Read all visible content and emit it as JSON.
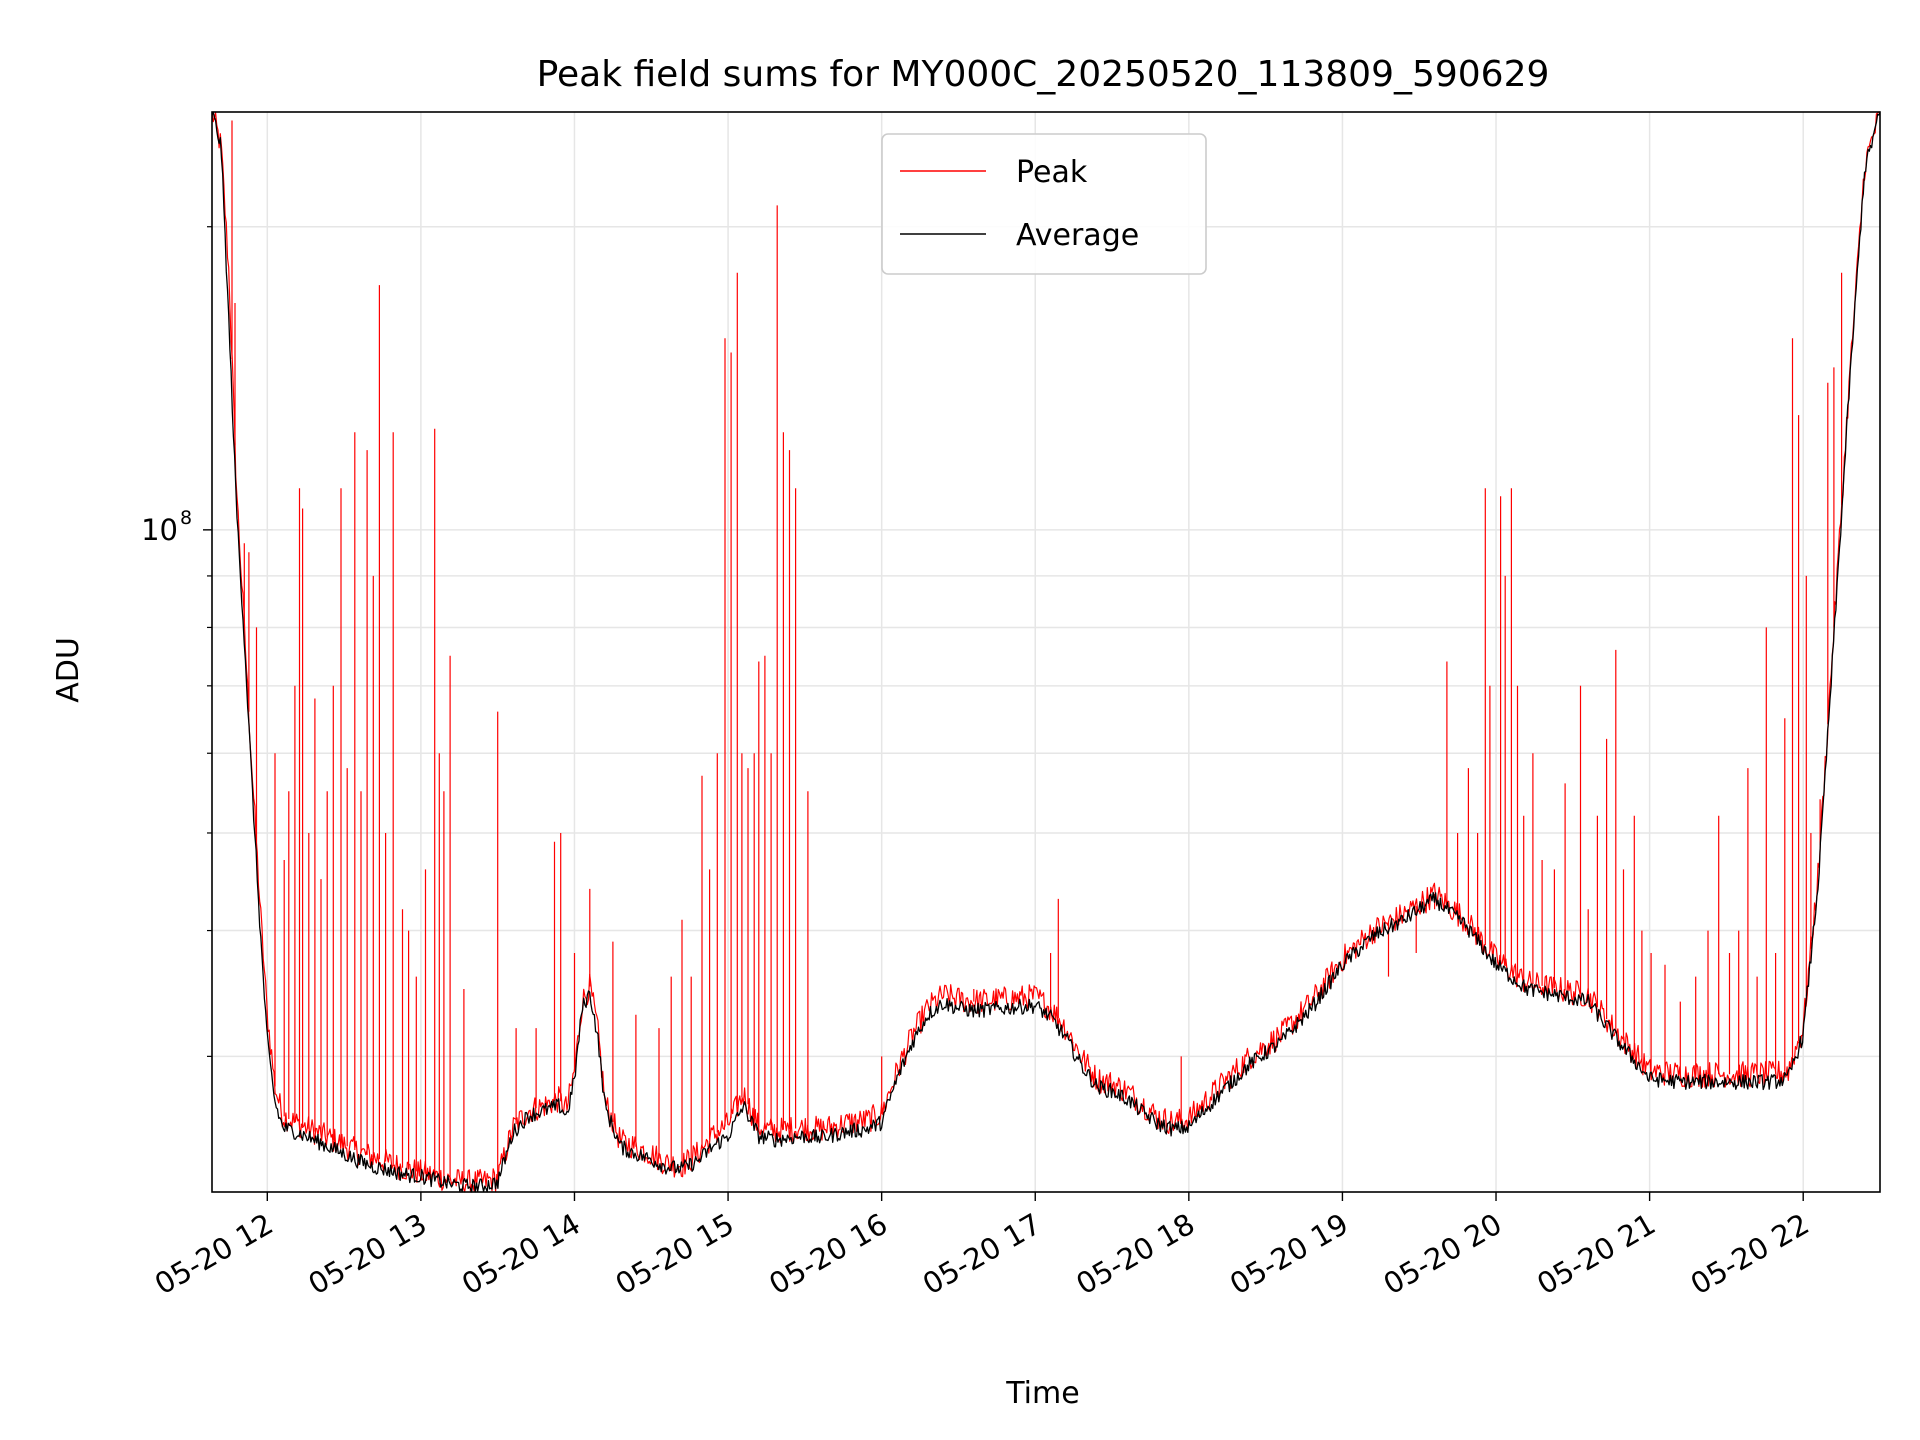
{
  "chart_data": {
    "type": "line",
    "title": "Peak field sums for MY000C_20250520_113809_590629",
    "xlabel": "Time",
    "ylabel": "ADU",
    "yscale": "log",
    "x_unit": "hours on 2025-05-20",
    "xlim": [
      11.64,
      22.5
    ],
    "ylim": [
      22000000,
      260000000
    ],
    "grid": true,
    "legend_position": "top-center",
    "x_ticks": [
      {
        "value": 12,
        "label": "05-20 12"
      },
      {
        "value": 13,
        "label": "05-20 13"
      },
      {
        "value": 14,
        "label": "05-20 14"
      },
      {
        "value": 15,
        "label": "05-20 15"
      },
      {
        "value": 16,
        "label": "05-20 16"
      },
      {
        "value": 17,
        "label": "05-20 17"
      },
      {
        "value": 18,
        "label": "05-20 18"
      },
      {
        "value": 19,
        "label": "05-20 19"
      },
      {
        "value": 20,
        "label": "05-20 20"
      },
      {
        "value": 21,
        "label": "05-20 21"
      },
      {
        "value": 22,
        "label": "05-20 22"
      }
    ],
    "y_major_ticks": [
      {
        "value": 100000000,
        "base": "10",
        "exp": "8"
      }
    ],
    "y_minor_ticks": [
      30000000,
      40000000,
      50000000,
      60000000,
      70000000,
      80000000,
      90000000,
      200000000
    ],
    "series": [
      {
        "name": "Peak",
        "color": "#ff0000",
        "x": [
          11.64,
          11.7,
          11.75,
          11.8,
          11.85,
          11.9,
          11.95,
          12.0,
          12.05,
          12.1,
          12.2,
          12.3,
          12.4,
          12.5,
          12.6,
          12.7,
          12.8,
          12.9,
          13.0,
          13.1,
          13.2,
          13.3,
          13.4,
          13.5,
          13.6,
          13.7,
          13.8,
          13.9,
          13.95,
          14.0,
          14.05,
          14.1,
          14.15,
          14.2,
          14.3,
          14.4,
          14.5,
          14.6,
          14.7,
          14.8,
          14.9,
          15.0,
          15.1,
          15.2,
          15.3,
          15.4,
          15.5,
          15.6,
          15.7,
          15.8,
          15.9,
          16.0,
          16.1,
          16.2,
          16.3,
          16.4,
          16.5,
          16.6,
          16.8,
          17.0,
          17.1,
          17.2,
          17.3,
          17.4,
          17.5,
          17.6,
          17.7,
          17.8,
          17.9,
          18.0,
          18.1,
          18.2,
          18.4,
          18.6,
          18.8,
          19.0,
          19.2,
          19.4,
          19.6,
          19.8,
          20.0,
          20.2,
          20.4,
          20.6,
          20.8,
          21.0,
          21.2,
          21.4,
          21.6,
          21.8,
          21.9,
          22.0,
          22.1,
          22.2,
          22.3,
          22.4,
          22.5
        ],
        "y": [
          260000000,
          240000000,
          180000000,
          110000000,
          80000000,
          58000000,
          43000000,
          33000000,
          28000000,
          26200000,
          25700000,
          25300000,
          24900000,
          24500000,
          24100000,
          23800000,
          23500000,
          23200000,
          23000000,
          22800000,
          22600000,
          22500000,
          22500000,
          22700000,
          25500000,
          26500000,
          26800000,
          27200000,
          26600000,
          29000000,
          34000000,
          35200000,
          32000000,
          27000000,
          24700000,
          24400000,
          24000000,
          23500000,
          23400000,
          24000000,
          25000000,
          25700000,
          27500000,
          25500000,
          25300000,
          25400000,
          25500000,
          25400000,
          25600000,
          25800000,
          25900000,
          26300000,
          29000000,
          31500000,
          33500000,
          34500000,
          34200000,
          34000000,
          34200000,
          34400000,
          33500000,
          32000000,
          30000000,
          28500000,
          28200000,
          27700000,
          26900000,
          26100000,
          25800000,
          26000000,
          27000000,
          28000000,
          30000000,
          31500000,
          34000000,
          37500000,
          40000000,
          41500000,
          43500000,
          41000000,
          37500000,
          35500000,
          35000000,
          34500000,
          31500000,
          29000000,
          28800000,
          28800000,
          28800000,
          28800000,
          29000000,
          32000000,
          46000000,
          80000000,
          140000000,
          230000000,
          260000000
        ],
        "spikes": [
          [
            11.77,
            255000000
          ],
          [
            11.79,
            168000000
          ],
          [
            11.85,
            97000000
          ],
          [
            11.88,
            95000000
          ],
          [
            11.93,
            80000000
          ],
          [
            12.05,
            60000000
          ],
          [
            12.11,
            47000000
          ],
          [
            12.14,
            55000000
          ],
          [
            12.18,
            70000000
          ],
          [
            12.21,
            110000000
          ],
          [
            12.23,
            105000000
          ],
          [
            12.27,
            50000000
          ],
          [
            12.31,
            68000000
          ],
          [
            12.35,
            45000000
          ],
          [
            12.39,
            55000000
          ],
          [
            12.43,
            70000000
          ],
          [
            12.48,
            110000000
          ],
          [
            12.52,
            58000000
          ],
          [
            12.57,
            125000000
          ],
          [
            12.61,
            55000000
          ],
          [
            12.65,
            120000000
          ],
          [
            12.69,
            90000000
          ],
          [
            12.73,
            175000000
          ],
          [
            12.77,
            50000000
          ],
          [
            12.82,
            125000000
          ],
          [
            12.88,
            42000000
          ],
          [
            12.92,
            40000000
          ],
          [
            12.97,
            36000000
          ],
          [
            13.03,
            46000000
          ],
          [
            13.09,
            126000000
          ],
          [
            13.12,
            60000000
          ],
          [
            13.15,
            55000000
          ],
          [
            13.19,
            75000000
          ],
          [
            13.28,
            35000000
          ],
          [
            13.5,
            66000000
          ],
          [
            13.62,
            32000000
          ],
          [
            13.75,
            32000000
          ],
          [
            13.87,
            49000000
          ],
          [
            13.91,
            50000000
          ],
          [
            14.0,
            38000000
          ],
          [
            14.1,
            44000000
          ],
          [
            14.25,
            39000000
          ],
          [
            14.4,
            33000000
          ],
          [
            14.55,
            32000000
          ],
          [
            14.63,
            36000000
          ],
          [
            14.7,
            41000000
          ],
          [
            14.76,
            36000000
          ],
          [
            14.83,
            57000000
          ],
          [
            14.88,
            46000000
          ],
          [
            14.93,
            60000000
          ],
          [
            14.98,
            155000000
          ],
          [
            15.02,
            150000000
          ],
          [
            15.06,
            180000000
          ],
          [
            15.09,
            60000000
          ],
          [
            15.13,
            58000000
          ],
          [
            15.17,
            60000000
          ],
          [
            15.2,
            74000000
          ],
          [
            15.24,
            75000000
          ],
          [
            15.28,
            60000000
          ],
          [
            15.32,
            210000000
          ],
          [
            15.36,
            125000000
          ],
          [
            15.4,
            120000000
          ],
          [
            15.44,
            110000000
          ],
          [
            15.52,
            55000000
          ],
          [
            16.0,
            30000000
          ],
          [
            16.6,
            35000000
          ],
          [
            17.1,
            38000000
          ],
          [
            17.15,
            43000000
          ],
          [
            17.25,
            31000000
          ],
          [
            17.95,
            30000000
          ],
          [
            19.3,
            36000000
          ],
          [
            19.48,
            38000000
          ],
          [
            19.6,
            42000000
          ],
          [
            19.68,
            74000000
          ],
          [
            19.75,
            50000000
          ],
          [
            19.82,
            58000000
          ],
          [
            19.88,
            50000000
          ],
          [
            19.93,
            110000000
          ],
          [
            19.96,
            70000000
          ],
          [
            20.03,
            108000000
          ],
          [
            20.06,
            90000000
          ],
          [
            20.1,
            110000000
          ],
          [
            20.14,
            70000000
          ],
          [
            20.18,
            52000000
          ],
          [
            20.24,
            60000000
          ],
          [
            20.3,
            47000000
          ],
          [
            20.38,
            46000000
          ],
          [
            20.45,
            56000000
          ],
          [
            20.55,
            70000000
          ],
          [
            20.6,
            42000000
          ],
          [
            20.66,
            52000000
          ],
          [
            20.72,
            62000000
          ],
          [
            20.78,
            76000000
          ],
          [
            20.83,
            46000000
          ],
          [
            20.9,
            52000000
          ],
          [
            20.95,
            40000000
          ],
          [
            21.01,
            38000000
          ],
          [
            21.1,
            37000000
          ],
          [
            21.2,
            34000000
          ],
          [
            21.3,
            36000000
          ],
          [
            21.38,
            40000000
          ],
          [
            21.45,
            52000000
          ],
          [
            21.52,
            38000000
          ],
          [
            21.58,
            40000000
          ],
          [
            21.64,
            58000000
          ],
          [
            21.7,
            36000000
          ],
          [
            21.76,
            80000000
          ],
          [
            21.82,
            38000000
          ],
          [
            21.88,
            65000000
          ],
          [
            21.93,
            155000000
          ],
          [
            21.97,
            130000000
          ],
          [
            22.02,
            90000000
          ],
          [
            22.05,
            50000000
          ],
          [
            22.11,
            54000000
          ],
          [
            22.16,
            140000000
          ],
          [
            22.2,
            145000000
          ],
          [
            22.25,
            180000000
          ]
        ]
      },
      {
        "name": "Average",
        "color": "#000000",
        "x": [
          11.64,
          11.7,
          11.75,
          11.8,
          11.85,
          11.9,
          11.95,
          12.0,
          12.05,
          12.1,
          12.2,
          12.3,
          12.4,
          12.5,
          12.6,
          12.7,
          12.8,
          12.9,
          13.0,
          13.1,
          13.2,
          13.3,
          13.4,
          13.5,
          13.6,
          13.7,
          13.8,
          13.9,
          13.95,
          14.0,
          14.05,
          14.1,
          14.15,
          14.2,
          14.3,
          14.4,
          14.5,
          14.6,
          14.7,
          14.8,
          14.9,
          15.0,
          15.1,
          15.2,
          15.3,
          15.4,
          15.5,
          15.6,
          15.7,
          15.8,
          15.9,
          16.0,
          16.1,
          16.2,
          16.3,
          16.4,
          16.5,
          16.6,
          16.8,
          17.0,
          17.1,
          17.2,
          17.3,
          17.4,
          17.5,
          17.6,
          17.7,
          17.8,
          17.9,
          18.0,
          18.1,
          18.2,
          18.4,
          18.6,
          18.8,
          19.0,
          19.2,
          19.4,
          19.6,
          19.8,
          20.0,
          20.2,
          20.4,
          20.6,
          20.8,
          21.0,
          21.2,
          21.4,
          21.6,
          21.8,
          21.9,
          22.0,
          22.1,
          22.2,
          22.3,
          22.4,
          22.5
        ],
        "y": [
          260000000,
          240000000,
          160000000,
          105000000,
          78000000,
          56000000,
          41000000,
          31000000,
          27000000,
          25500000,
          25200000,
          24800000,
          24400000,
          24000000,
          23600000,
          23300000,
          23100000,
          22900000,
          22800000,
          22600000,
          22400000,
          22300000,
          22300000,
          22500000,
          25200000,
          26200000,
          26500000,
          26800000,
          26200000,
          28500000,
          33500000,
          34700000,
          31500000,
          26700000,
          24400000,
          24000000,
          23700000,
          23300000,
          23200000,
          23600000,
          24400000,
          25000000,
          26800000,
          25000000,
          24800000,
          24900000,
          25000000,
          24900000,
          25100000,
          25300000,
          25400000,
          25800000,
          28500000,
          31000000,
          33000000,
          33900000,
          33500000,
          33300000,
          33500000,
          33700000,
          32800000,
          31300000,
          29400000,
          28000000,
          27700000,
          27200000,
          26400000,
          25700000,
          25400000,
          25500000,
          26500000,
          27500000,
          29500000,
          31000000,
          33500000,
          37000000,
          39500000,
          41000000,
          43000000,
          40500000,
          37000000,
          35000000,
          34500000,
          34000000,
          31000000,
          28500000,
          28300000,
          28300000,
          28300000,
          28300000,
          28500000,
          31500000,
          45000000,
          78000000,
          138000000,
          228000000,
          260000000
        ]
      }
    ]
  }
}
